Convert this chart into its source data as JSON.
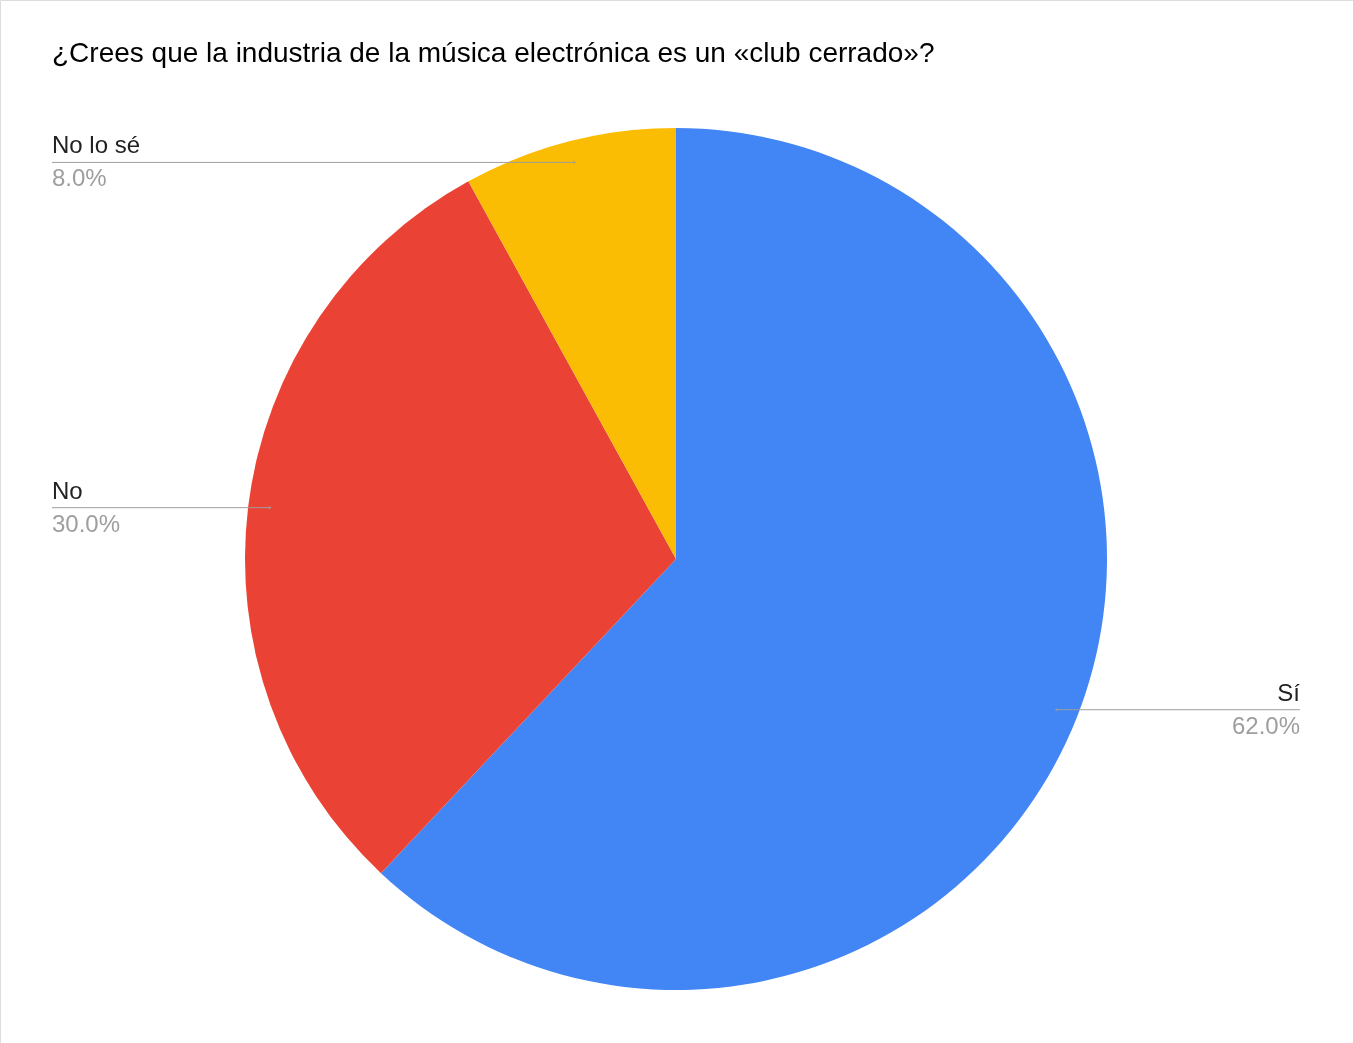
{
  "chart_data": {
    "type": "pie",
    "title": "¿Crees que la industria de la música electrónica es un «club cerrado»?",
    "categories": [
      "Sí",
      "No",
      "No lo sé"
    ],
    "values": [
      62,
      30,
      8
    ],
    "colors": [
      "#4285f4",
      "#ea4335",
      "#fbbc04"
    ],
    "value_labels": [
      "62.0%",
      "30.0%",
      "8.0%"
    ]
  }
}
